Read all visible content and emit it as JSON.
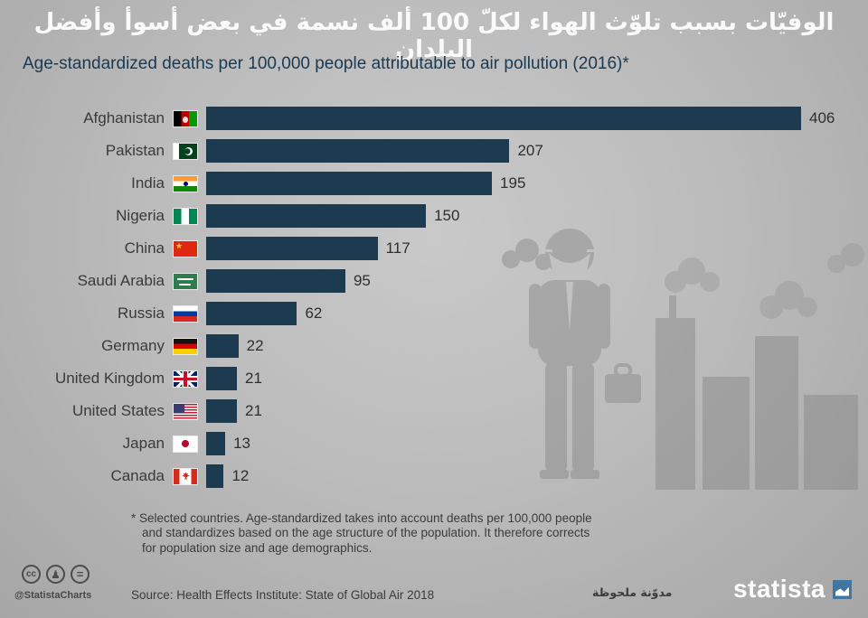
{
  "header": {
    "title_ar": "الوفيّات بسبب تلوّث الهواء لكلّ 100 ألف نسمة في بعض أسوأ وأفضل البلدان",
    "subtitle": "Age-standardized deaths per 100,000 people attributable to air pollution (2016)*"
  },
  "chart_data": {
    "type": "bar",
    "orientation": "horizontal",
    "title": "الوفيّات بسبب تلوّث الهواء لكلّ 100 ألف نسمة في بعض أسوأ وأفضل البلدان",
    "subtitle": "Age-standardized deaths per 100,000 people attributable to air pollution (2016)*",
    "categories": [
      "Afghanistan",
      "Pakistan",
      "India",
      "Nigeria",
      "China",
      "Saudi Arabia",
      "Russia",
      "Germany",
      "United Kingdom",
      "United States",
      "Japan",
      "Canada"
    ],
    "values": [
      406,
      207,
      195,
      150,
      117,
      95,
      62,
      22,
      21,
      21,
      13,
      12
    ],
    "rows": [
      {
        "country": "Afghanistan",
        "value": 406,
        "flag": "afghanistan"
      },
      {
        "country": "Pakistan",
        "value": 207,
        "flag": "pakistan"
      },
      {
        "country": "India",
        "value": 195,
        "flag": "india"
      },
      {
        "country": "Nigeria",
        "value": 150,
        "flag": "nigeria"
      },
      {
        "country": "China",
        "value": 117,
        "flag": "china"
      },
      {
        "country": "Saudi Arabia",
        "value": 95,
        "flag": "saudi-arabia"
      },
      {
        "country": "Russia",
        "value": 62,
        "flag": "russia"
      },
      {
        "country": "Germany",
        "value": 22,
        "flag": "germany"
      },
      {
        "country": "United Kingdom",
        "value": 21,
        "flag": "united-kingdom"
      },
      {
        "country": "United States",
        "value": 21,
        "flag": "united-states"
      },
      {
        "country": "Japan",
        "value": 13,
        "flag": "japan"
      },
      {
        "country": "Canada",
        "value": 12,
        "flag": "canada"
      }
    ],
    "xlim": [
      0,
      430
    ],
    "bar_color": "#1c3a50",
    "value_labels": true,
    "grid": false,
    "legend": false
  },
  "footnote": "* Selected countries. Age-standardized takes into account deaths per 100,000 people and standardizes based on the age structure of the population. It therefore corrects for population size and age demographics.",
  "footer": {
    "source": "Source: Health Effects Institute: State of Global Air 2018",
    "credit": "@StatistaCharts",
    "note_ar": "مدوّنة ملحوظة",
    "brand": "statista",
    "brand_color": "#3e76a4",
    "license_icons": [
      "cc",
      "attribution-person",
      "no-derivatives-equals"
    ],
    "cc_label": "cc",
    "person_glyph": "♟",
    "equals_glyph": "="
  }
}
